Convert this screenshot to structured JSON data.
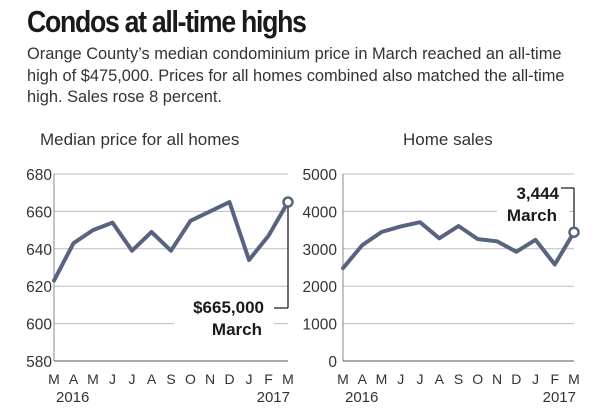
{
  "headline": "Condos at all-time highs",
  "dek": "Orange County’s median condominium price in March reached an all-time high of $475,000. Prices for all homes combined also matched the all-time high. Sales rose 8 percent.",
  "colors": {
    "line": "#58647f",
    "grid": "#bdbdbd",
    "text": "#333333"
  },
  "chart_data": [
    {
      "type": "line",
      "title": "Median price for all homes",
      "x": [
        "M",
        "A",
        "M",
        "J",
        "J",
        "A",
        "S",
        "O",
        "N",
        "D",
        "J",
        "F",
        "M"
      ],
      "year_labels": [
        "2016",
        "2017"
      ],
      "series": [
        {
          "values": [
            623,
            643,
            650,
            654,
            639,
            649,
            639,
            655,
            660,
            665,
            634,
            647,
            665
          ]
        }
      ],
      "ylim": [
        580,
        680
      ],
      "yticks": [
        "580",
        "600",
        "620",
        "640",
        "660",
        "680"
      ],
      "grid": true,
      "annotation": {
        "value": "$665,000",
        "label": "March"
      }
    },
    {
      "type": "line",
      "title": "Home sales",
      "x": [
        "M",
        "A",
        "M",
        "J",
        "J",
        "A",
        "S",
        "O",
        "N",
        "D",
        "J",
        "F",
        "M"
      ],
      "year_labels": [
        "2016",
        "2017"
      ],
      "series": [
        {
          "values": [
            2480,
            3100,
            3450,
            3600,
            3710,
            3280,
            3610,
            3260,
            3200,
            2920,
            3240,
            2580,
            3444
          ]
        }
      ],
      "ylim": [
        0,
        5000
      ],
      "yticks": [
        "0",
        "1000",
        "2000",
        "3000",
        "4000",
        "5000"
      ],
      "grid": true,
      "annotation": {
        "value": "3,444",
        "label": "March"
      }
    }
  ]
}
